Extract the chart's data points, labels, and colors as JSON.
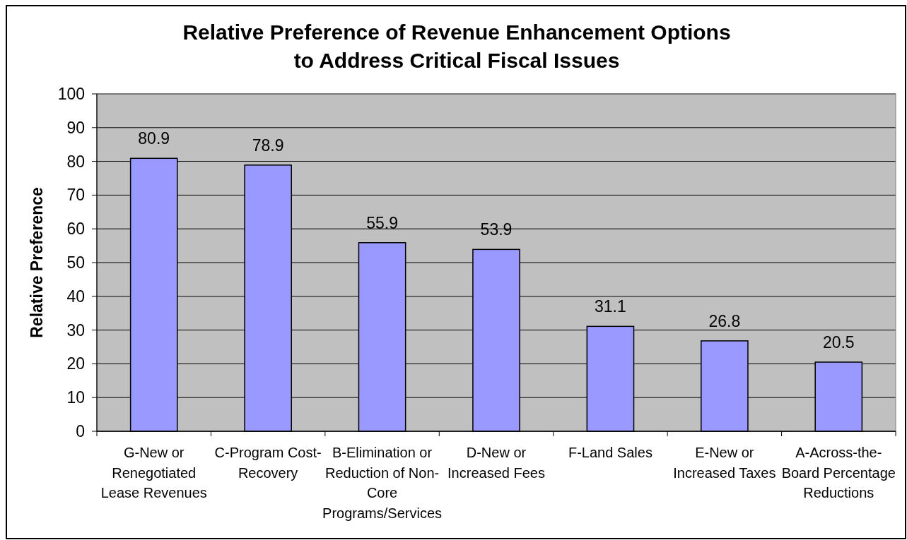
{
  "chart_data": {
    "type": "bar",
    "title": "Relative Preference of Revenue Enhancement Options to Address Critical Fiscal Issues",
    "ylabel": "Relative Preference",
    "categories": [
      "G-New or Renegotiated Lease Revenues",
      "C-Program Cost-Recovery",
      "B-Elimination or Reduction of Non-Core Programs/Services",
      "D-New or Increased Fees",
      "F-Land Sales",
      "E-New or Increased Taxes",
      "A-Across-the-Board Percentage Reductions"
    ],
    "values": [
      80.9,
      78.9,
      55.9,
      53.9,
      31.1,
      26.8,
      20.5
    ],
    "color": "#9999ff",
    "ylim": [
      0,
      100
    ],
    "yticks": [
      0,
      10,
      20,
      30,
      40,
      50,
      60,
      70,
      80,
      90,
      100
    ],
    "grid": "y",
    "data_labels": true
  }
}
